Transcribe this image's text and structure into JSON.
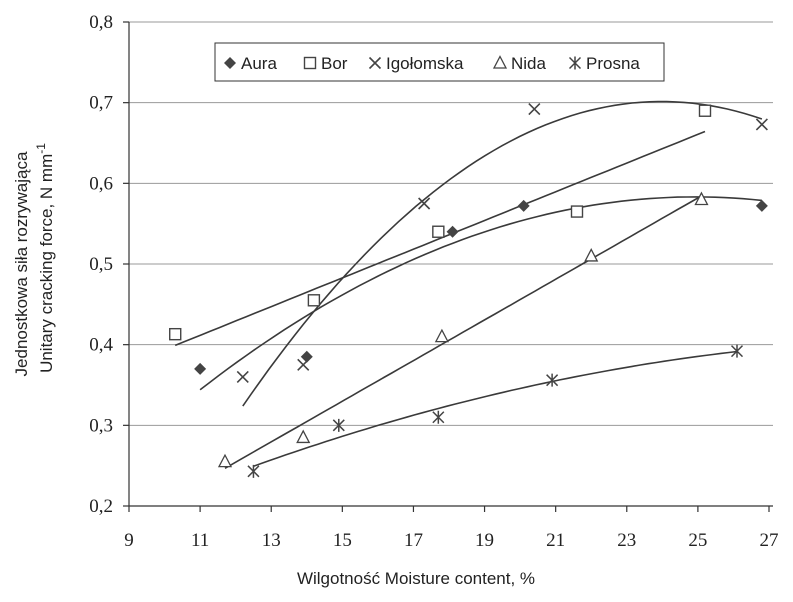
{
  "chart_data": {
    "type": "scatter",
    "xlabel": "Wilgotność   Moisture content, %",
    "ylabel_pl": "Jednostkowa siła rozrywająca",
    "ylabel_en": "Unitary cracking force, N mm",
    "ylabel_sup": "-1",
    "xlim": [
      9,
      27
    ],
    "ylim": [
      0.2,
      0.8
    ],
    "xticks": [
      9,
      11,
      13,
      15,
      17,
      19,
      21,
      23,
      25,
      27
    ],
    "yticks": [
      0.2,
      0.3,
      0.4,
      0.5,
      0.6,
      0.7,
      0.8
    ],
    "xtick_labels": [
      "9",
      "11",
      "13",
      "15",
      "17",
      "19",
      "21",
      "23",
      "25",
      "27"
    ],
    "ytick_labels": [
      "0,2",
      "0,3",
      "0,4",
      "0,5",
      "0,6",
      "0,7",
      "0,8"
    ],
    "grid": "horizontal",
    "legend_position": "top",
    "series": [
      {
        "name": "Aura",
        "marker": "diamond",
        "color": "#555555",
        "x": [
          11.0,
          14.0,
          18.1,
          20.1,
          26.8
        ],
        "y": [
          0.37,
          0.385,
          0.54,
          0.572,
          0.572
        ]
      },
      {
        "name": "Bor",
        "marker": "square",
        "color": "#555555",
        "x": [
          10.3,
          14.2,
          17.7,
          21.6,
          25.2
        ],
        "y": [
          0.413,
          0.455,
          0.54,
          0.565,
          0.69
        ]
      },
      {
        "name": "Igołomska",
        "marker": "x",
        "color": "#555555",
        "x": [
          12.2,
          13.9,
          17.3,
          20.4,
          26.8
        ],
        "y": [
          0.36,
          0.375,
          0.575,
          0.692,
          0.673
        ]
      },
      {
        "name": "Nida",
        "marker": "triangle",
        "color": "#555555",
        "x": [
          11.7,
          13.9,
          17.8,
          22.0,
          25.1
        ],
        "y": [
          0.255,
          0.285,
          0.41,
          0.51,
          0.58
        ]
      },
      {
        "name": "Prosna",
        "marker": "star",
        "color": "#555555",
        "x": [
          12.5,
          14.9,
          17.7,
          20.9,
          26.1
        ],
        "y": [
          0.243,
          0.3,
          0.31,
          0.356,
          0.392
        ]
      }
    ]
  }
}
